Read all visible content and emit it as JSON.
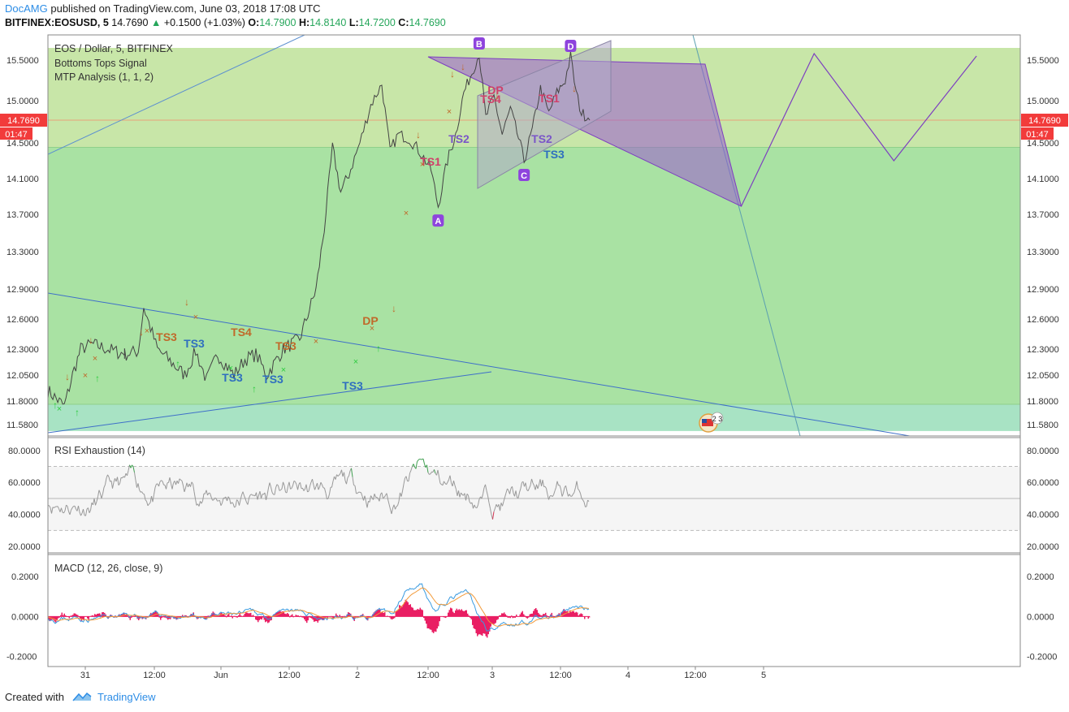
{
  "header": {
    "author": "DocAMG",
    "published": "published on TradingView.com, June 03, 2018 17:08 UTC",
    "symbol": "BITFINEX:EOSUSD, 5",
    "last": "14.7690",
    "change": "+0.1500 (+1.03%)",
    "o_label": "O:",
    "o": "14.7900",
    "h_label": "H:",
    "h": "14.8140",
    "l_label": "L:",
    "l": "14.7200",
    "c_label": "C:",
    "c": "14.7690"
  },
  "legend": {
    "title": "EOS / Dollar, 5, BITFINEX",
    "ind1": "Bottoms Tops Signal",
    "ind2": "MTP Analysis (1, 1, 2)",
    "rsi": "RSI Exhaustion (14)",
    "macd": "MACD (12, 26, close, 9)"
  },
  "price_tag": {
    "value": "14.7690",
    "countdown": "01:47"
  },
  "footer": {
    "created": "Created with",
    "brand": "TradingView"
  },
  "colors": {
    "price_line": "#333333",
    "accent_blue": "#2d8de6",
    "up": "#26a65b",
    "down": "#e91e63",
    "price_tag": "#f23b3b",
    "harmonic": "#9b59d0",
    "ts_orange": "#c0692a",
    "ts_blue": "#2f6fbf",
    "zone_upper": "#c8e6a8",
    "zone_mid": "#a9e2a3",
    "zone_lower": "#a8e3c4"
  },
  "chart_data": [
    {
      "type": "line",
      "name": "EOS / Dollar price",
      "x_ticks": [
        "31",
        "12:00",
        "Jun",
        "12:00",
        "2",
        "12:00",
        "3",
        "12:00",
        "4",
        "12:00",
        "5"
      ],
      "y_ticks": [
        "15.5000",
        "15.0000",
        "14.5000",
        "14.1000",
        "13.7000",
        "13.3000",
        "12.9000",
        "12.6000",
        "12.3000",
        "12.0500",
        "11.8000",
        "11.5800"
      ],
      "ylim": [
        11.52,
        15.65
      ],
      "key_points": [
        {
          "label": "A",
          "t": 0.713,
          "y": 13.79
        },
        {
          "label": "B",
          "t": 0.788,
          "y": 15.58
        },
        {
          "label": "C",
          "t": 0.87,
          "y": 14.3
        },
        {
          "label": "D",
          "t": 0.955,
          "y": 15.55
        }
      ],
      "signals": [
        {
          "text": "TS3",
          "kind": "top"
        },
        {
          "text": "TS4",
          "kind": "top"
        },
        {
          "text": "TS3",
          "kind": "top"
        },
        {
          "text": "DP",
          "kind": "top"
        },
        {
          "text": "TS1",
          "kind": "top"
        },
        {
          "text": "DP",
          "kind": "top"
        },
        {
          "text": "TS4",
          "kind": "top"
        },
        {
          "text": "TS1",
          "kind": "top"
        },
        {
          "text": "TS3",
          "kind": "bottom"
        },
        {
          "text": "TS3",
          "kind": "bottom"
        },
        {
          "text": "TS3",
          "kind": "bottom"
        },
        {
          "text": "TS3",
          "kind": "bottom"
        },
        {
          "text": "TS2",
          "kind": "bottom"
        },
        {
          "text": "TS2",
          "kind": "bottom"
        },
        {
          "text": "TS3",
          "kind": "bottom"
        }
      ],
      "zones": [
        {
          "from": 14.45,
          "to": 15.65,
          "color": "upper"
        },
        {
          "from": 11.77,
          "to": 14.45,
          "color": "mid"
        },
        {
          "from": 11.52,
          "to": 11.77,
          "color": "lower"
        }
      ]
    },
    {
      "type": "line",
      "name": "RSI Exhaustion (14)",
      "y_ticks": [
        "80.0000",
        "60.0000",
        "40.0000",
        "20.0000"
      ],
      "ylim": [
        16,
        88
      ],
      "bands": [
        70,
        50,
        30
      ]
    },
    {
      "type": "bar",
      "name": "MACD (12, 26, close, 9)",
      "y_ticks": [
        "0.2000",
        "0.0000",
        "-0.2000"
      ],
      "ylim": [
        -0.25,
        0.31
      ]
    }
  ]
}
